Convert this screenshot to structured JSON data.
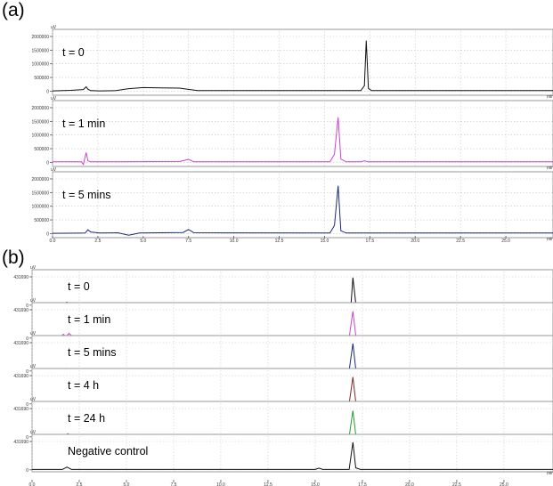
{
  "panels": [
    {
      "id": "a",
      "label": "(a)"
    },
    {
      "id": "b",
      "label": "(b)"
    }
  ],
  "chart_data": [
    {
      "type": "line",
      "panel": "(a)",
      "x_unit": "min",
      "y_unit": "uV",
      "xlim": [
        0,
        27.6
      ],
      "ylim": [
        -150000,
        2000000
      ],
      "x_ticks": [
        "0.0",
        "2.5",
        "5.0",
        "7.5",
        "10.0",
        "12.5",
        "15.0",
        "17.5",
        "20.0",
        "22.5",
        "25.0"
      ],
      "y_ticks": [
        "2000000",
        "1500000",
        "1000000",
        "500000",
        "0"
      ],
      "grid": true,
      "series": [
        {
          "name": "t = 0",
          "color": "#111111",
          "x": [
            0,
            1.0,
            1.7,
            1.85,
            1.95,
            2.1,
            2.6,
            3.5,
            4.2,
            5.0,
            6.0,
            7.0,
            8.0,
            17.0,
            17.2,
            17.3,
            17.42,
            17.6,
            27.6
          ],
          "y": [
            10000,
            30000,
            60000,
            160000,
            70000,
            20000,
            10000,
            20000,
            90000,
            130000,
            120000,
            110000,
            20000,
            20000,
            200000,
            1850000,
            100000,
            20000,
            20000
          ]
        },
        {
          "name": "t = 1 min",
          "color": "#cc44cc",
          "x": [
            0,
            1.6,
            1.7,
            1.85,
            1.95,
            2.1,
            2.5,
            7.0,
            7.5,
            7.8,
            15.3,
            15.55,
            15.75,
            15.9,
            16.2,
            17.0,
            17.2,
            17.4,
            27.6
          ],
          "y": [
            20000,
            20000,
            -80000,
            360000,
            60000,
            20000,
            20000,
            30000,
            110000,
            20000,
            20000,
            300000,
            1650000,
            120000,
            20000,
            20000,
            60000,
            20000,
            20000
          ]
        },
        {
          "name": "t = 5 mins",
          "color": "#1a2a7a",
          "x": [
            0,
            1.5,
            1.8,
            1.95,
            2.1,
            2.6,
            3.6,
            4.2,
            4.8,
            7.2,
            7.5,
            7.8,
            15.3,
            15.55,
            15.75,
            15.9,
            16.2,
            27.6
          ],
          "y": [
            10000,
            15000,
            20000,
            140000,
            60000,
            20000,
            30000,
            -60000,
            20000,
            40000,
            150000,
            30000,
            20000,
            300000,
            1750000,
            100000,
            20000,
            20000
          ]
        }
      ]
    },
    {
      "type": "line",
      "panel": "(b)",
      "x_unit": "min",
      "y_unit": "uV",
      "xlim": [
        0,
        27.6
      ],
      "ylim": [
        -30000,
        431690
      ],
      "x_ticks": [
        "0.0",
        "2.5",
        "5.0",
        "7.5",
        "10.0",
        "12.5",
        "15.0",
        "17.5",
        "20.0",
        "22.5",
        "25.0"
      ],
      "y_ticks": [
        "431690",
        "0"
      ],
      "grid": true,
      "series": [
        {
          "name": "t = 0",
          "color": "#111111",
          "x": [
            0,
            1.5,
            1.7,
            1.85,
            2.0,
            2.2,
            16.5,
            16.9,
            17.0,
            17.15,
            17.35,
            27.6
          ],
          "y": [
            5000,
            5000,
            25000,
            45000,
            15000,
            5000,
            5000,
            20000,
            420000,
            30000,
            5000,
            5000
          ]
        },
        {
          "name": "t = 1 min",
          "color": "#cc44cc",
          "x": [
            0,
            1.5,
            1.65,
            1.8,
            1.95,
            2.2,
            2.4,
            15.0,
            15.2,
            15.4,
            16.8,
            17.0,
            17.15,
            17.4,
            27.6
          ],
          "y": [
            5000,
            5000,
            60000,
            25000,
            70000,
            15000,
            5000,
            5000,
            30000,
            5000,
            5000,
            410000,
            40000,
            5000,
            5000
          ]
        },
        {
          "name": "t = 5 mins",
          "color": "#1a2a7a",
          "x": [
            0,
            1.6,
            1.8,
            2.0,
            3.5,
            5.0,
            7.5,
            16.8,
            17.0,
            17.15,
            17.4,
            27.6
          ],
          "y": [
            5000,
            5000,
            40000,
            10000,
            20000,
            15000,
            8000,
            8000,
            420000,
            30000,
            8000,
            8000
          ]
        },
        {
          "name": "t = 4 h",
          "color": "#7a2a2a",
          "x": [
            0,
            1.7,
            1.9,
            2.1,
            15.0,
            15.2,
            15.4,
            16.8,
            17.0,
            17.15,
            17.4,
            27.6
          ],
          "y": [
            5000,
            5000,
            35000,
            5000,
            5000,
            30000,
            5000,
            5000,
            410000,
            30000,
            5000,
            5000
          ]
        },
        {
          "name": "t = 24 h",
          "color": "#2a9a2a",
          "x": [
            0,
            1.7,
            1.9,
            2.1,
            16.8,
            17.0,
            17.15,
            17.4,
            27.6
          ],
          "y": [
            5000,
            5000,
            50000,
            5000,
            5000,
            400000,
            30000,
            5000,
            5000
          ]
        },
        {
          "name": "Negative control",
          "color": "#111111",
          "x": [
            0,
            1.6,
            1.85,
            2.1,
            15.0,
            15.2,
            15.4,
            16.8,
            17.0,
            17.15,
            17.4,
            27.6
          ],
          "y": [
            5000,
            5000,
            40000,
            5000,
            5000,
            25000,
            5000,
            5000,
            420000,
            30000,
            5000,
            5000
          ]
        }
      ]
    }
  ]
}
